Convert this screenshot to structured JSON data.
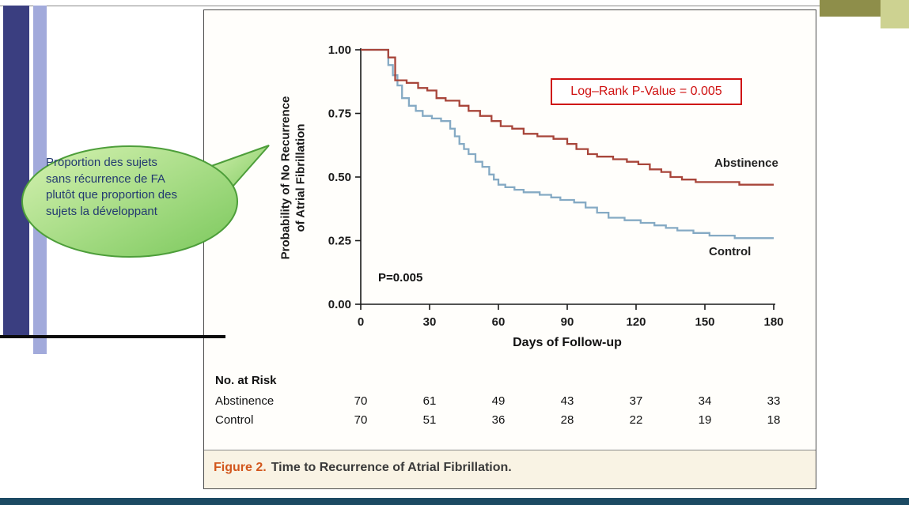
{
  "slide": {
    "bubble": {
      "lines": [
        "Proportion des sujets",
        "sans récurrence de FA",
        "plutôt que proportion des",
        "sujets la développant"
      ]
    }
  },
  "figure": {
    "caption_prefix": "Figure 2.",
    "caption_text": "Time to Recurrence of Atrial Fibrillation.",
    "ylabel_line1": "Probability of No Recurrence",
    "ylabel_line2": "of Atrial Fibrillation"
  },
  "colors": {
    "abstinence_curve": "#a8453a",
    "control_curve": "#85aac4",
    "annotation_red": "#cf1212",
    "caption_prefix_orange": "#d2571d",
    "bubble_fill_light": "#d6f2b2",
    "bubble_fill_dark": "#7bc85c",
    "bubble_border": "#4d9e3a",
    "navy_bar": "#3a3e80",
    "light_stripe": "#a2aadb",
    "olive_dark": "#8e8e4a",
    "olive_light": "#cdd291",
    "bottom_bar": "#1c4a63"
  },
  "chart_data": {
    "type": "line",
    "subtype": "kaplan-meier-step",
    "title": "Time to Recurrence of Atrial Fibrillation",
    "xlabel": "Days of Follow-up",
    "ylabel": "Probability of No Recurrence of Atrial Fibrillation",
    "xlim": [
      0,
      180
    ],
    "ylim": [
      0,
      1
    ],
    "xticks": [
      0,
      30,
      60,
      90,
      120,
      150,
      180
    ],
    "yticks": [
      0,
      0.25,
      0.5,
      0.75,
      1
    ],
    "grid": false,
    "legend_position": "on-curve-labels",
    "annotations": [
      {
        "text": "P=0.005",
        "x": 9,
        "y": 0.1
      },
      {
        "text": "Log–Rank P-Value = 0.005",
        "x": 120,
        "y": 0.9,
        "style": "red-box"
      }
    ],
    "series": [
      {
        "name": "Abstinence",
        "color": "#a8453a",
        "points": [
          [
            0,
            1.0
          ],
          [
            12,
            0.97
          ],
          [
            15,
            0.88
          ],
          [
            20,
            0.87
          ],
          [
            25,
            0.85
          ],
          [
            29,
            0.84
          ],
          [
            33,
            0.81
          ],
          [
            37,
            0.8
          ],
          [
            43,
            0.78
          ],
          [
            47,
            0.76
          ],
          [
            52,
            0.74
          ],
          [
            57,
            0.72
          ],
          [
            61,
            0.7
          ],
          [
            66,
            0.69
          ],
          [
            71,
            0.67
          ],
          [
            77,
            0.66
          ],
          [
            84,
            0.65
          ],
          [
            90,
            0.63
          ],
          [
            94,
            0.61
          ],
          [
            99,
            0.59
          ],
          [
            103,
            0.58
          ],
          [
            110,
            0.57
          ],
          [
            116,
            0.56
          ],
          [
            121,
            0.55
          ],
          [
            126,
            0.53
          ],
          [
            131,
            0.52
          ],
          [
            135,
            0.5
          ],
          [
            140,
            0.49
          ],
          [
            146,
            0.48
          ],
          [
            165,
            0.47
          ],
          [
            180,
            0.47
          ]
        ]
      },
      {
        "name": "Control",
        "color": "#85aac4",
        "points": [
          [
            0,
            1.0
          ],
          [
            12,
            0.94
          ],
          [
            14,
            0.9
          ],
          [
            16,
            0.86
          ],
          [
            18,
            0.81
          ],
          [
            21,
            0.78
          ],
          [
            24,
            0.76
          ],
          [
            27,
            0.74
          ],
          [
            31,
            0.73
          ],
          [
            35,
            0.72
          ],
          [
            39,
            0.69
          ],
          [
            41,
            0.66
          ],
          [
            43,
            0.63
          ],
          [
            45,
            0.61
          ],
          [
            47,
            0.59
          ],
          [
            50,
            0.56
          ],
          [
            53,
            0.54
          ],
          [
            56,
            0.51
          ],
          [
            58,
            0.49
          ],
          [
            60,
            0.47
          ],
          [
            63,
            0.46
          ],
          [
            67,
            0.45
          ],
          [
            71,
            0.44
          ],
          [
            78,
            0.43
          ],
          [
            83,
            0.42
          ],
          [
            87,
            0.41
          ],
          [
            93,
            0.4
          ],
          [
            98,
            0.38
          ],
          [
            103,
            0.36
          ],
          [
            108,
            0.34
          ],
          [
            115,
            0.33
          ],
          [
            122,
            0.32
          ],
          [
            128,
            0.31
          ],
          [
            133,
            0.3
          ],
          [
            138,
            0.29
          ],
          [
            145,
            0.28
          ],
          [
            152,
            0.27
          ],
          [
            163,
            0.26
          ],
          [
            180,
            0.26
          ]
        ]
      }
    ],
    "at_risk": {
      "title": "No. at Risk",
      "times": [
        0,
        30,
        60,
        90,
        120,
        150,
        180
      ],
      "rows": [
        {
          "name": "Abstinence",
          "counts": [
            70,
            61,
            49,
            43,
            37,
            34,
            33
          ]
        },
        {
          "name": "Control",
          "counts": [
            70,
            51,
            36,
            28,
            22,
            19,
            18
          ]
        }
      ]
    }
  }
}
